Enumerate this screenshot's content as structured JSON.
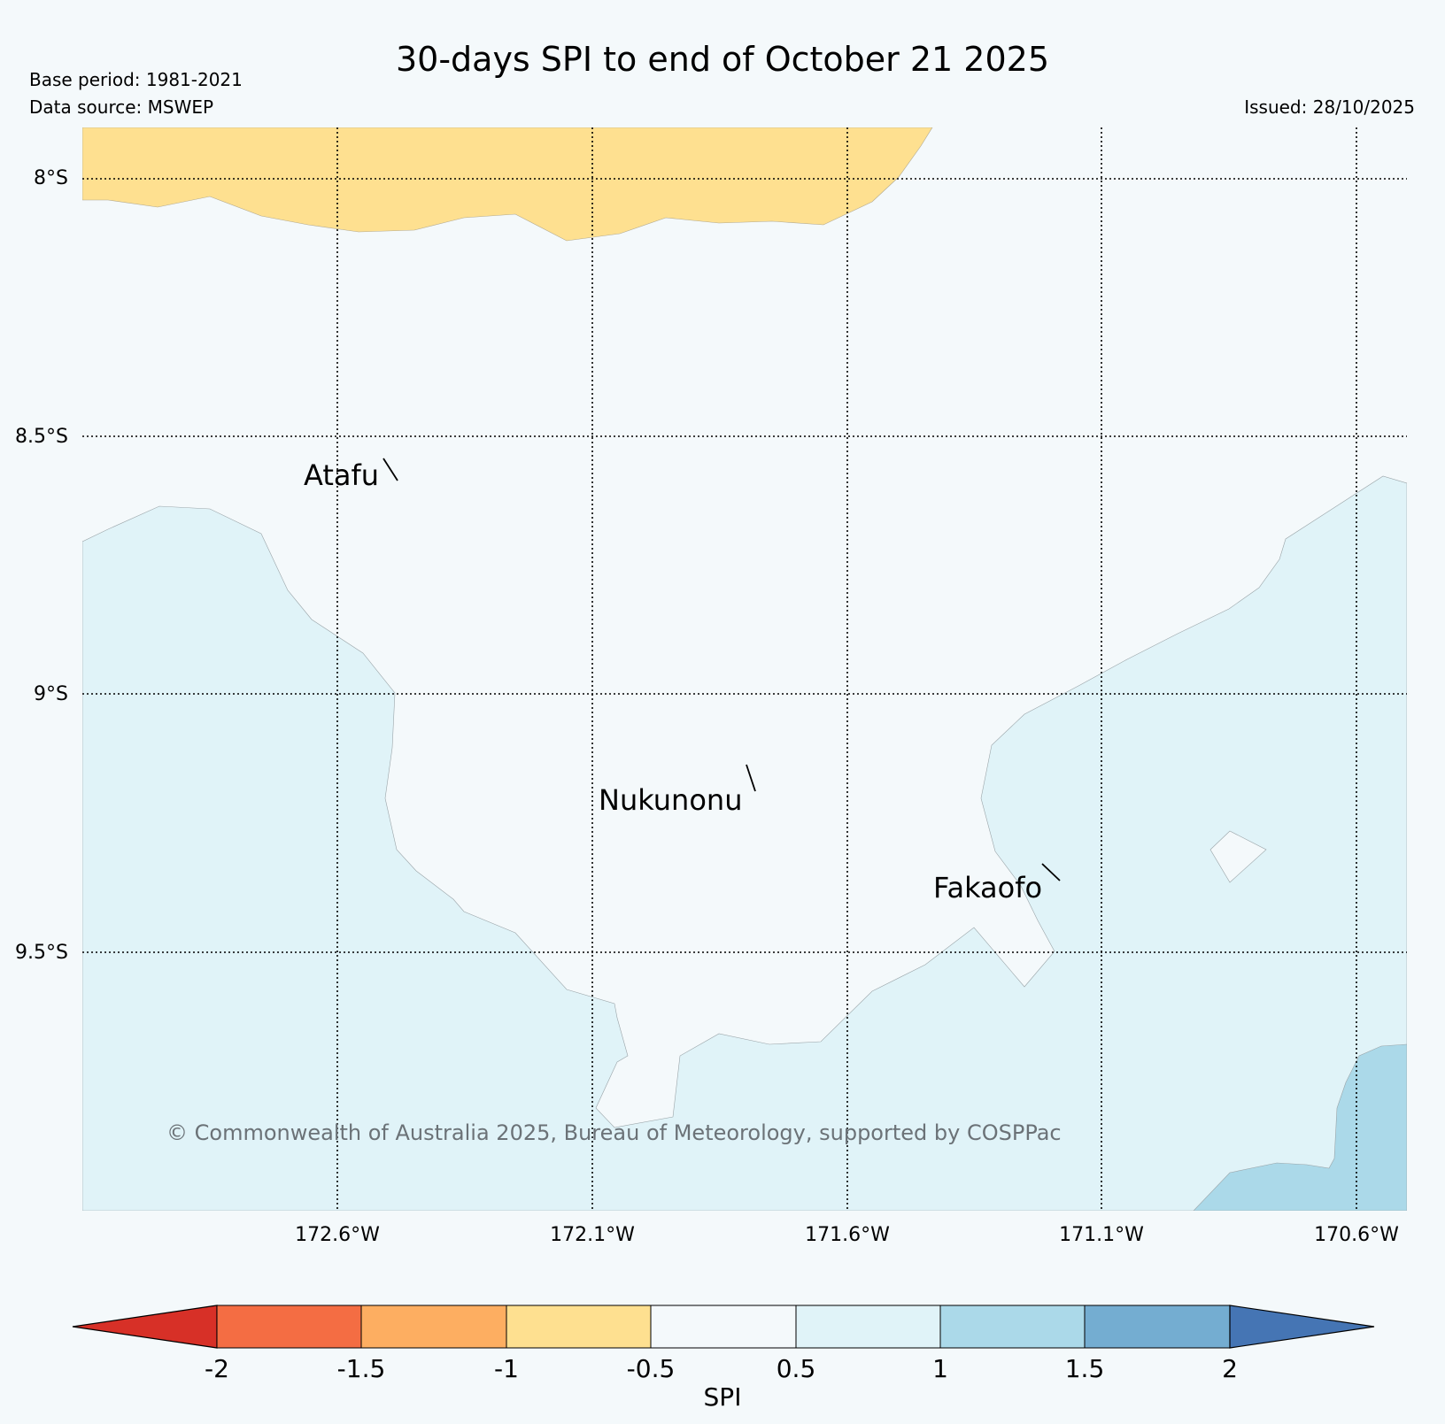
{
  "title": "30-days SPI to end of October 21 2025",
  "meta": {
    "base_period": "Base period: 1981-2021",
    "data_source": "Data source: MSWEP",
    "issued": "Issued: 28/10/2025"
  },
  "map": {
    "lat_labels": [
      "8°S",
      "8.5°S",
      "9°S",
      "9.5°S"
    ],
    "lon_labels": [
      "172.6°W",
      "172.1°W",
      "171.6°W",
      "171.1°W",
      "170.6°W"
    ],
    "places": [
      "Atafu",
      "Nukunonu",
      "Fakaofo"
    ],
    "copyright": "© Commonwealth of Australia 2025, Bureau of Meteorology, supported by COSPPac"
  },
  "colorbar": {
    "label": "SPI",
    "ticks": [
      "-2",
      "-1.5",
      "-1",
      "-0.5",
      "0.5",
      "1",
      "1.5",
      "2"
    ],
    "colors": {
      "below_-2": "#d73027",
      "-2_-1.5": "#f46d43",
      "-1.5_-1": "#fdae61",
      "-1_-0.5": "#fee090",
      "-0.5_0.5": "#f4f9fb",
      "0.5_1": "#e0f3f8",
      "1_1.5": "#abd9e9",
      "1.5_2": "#74add1",
      "above_2": "#4575b4"
    }
  }
}
